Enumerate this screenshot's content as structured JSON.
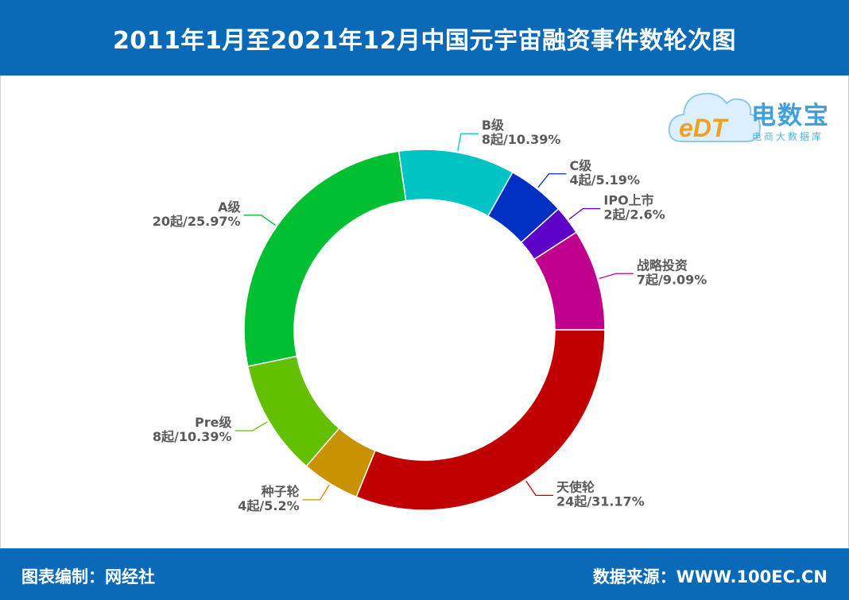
{
  "header": {
    "title": "2011年1月至2021年12月中国元宇宙融资事件数轮次图"
  },
  "footer": {
    "left": "图表编制：网经社",
    "right": "数据来源：WWW.100EC.CN"
  },
  "logo": {
    "brand": "电数宝",
    "sub": "电商大数据库",
    "mark": "eDT"
  },
  "chart_data": {
    "type": "pie",
    "style": "donut",
    "slices": [
      {
        "name": "天使轮",
        "count": 24,
        "pct": 31.17,
        "count_label": "24起/31.17%",
        "color": "#c00000"
      },
      {
        "name": "种子轮",
        "count": 4,
        "pct": 5.2,
        "count_label": "4起/5.2%",
        "color": "#c89200"
      },
      {
        "name": "Pre级",
        "count": 8,
        "pct": 10.39,
        "count_label": "8起/10.39%",
        "color": "#63c000"
      },
      {
        "name": "A级",
        "count": 20,
        "pct": 25.97,
        "count_label": "20起/25.97%",
        "color": "#00c032"
      },
      {
        "name": "B级",
        "count": 8,
        "pct": 10.39,
        "count_label": "8起/10.39%",
        "color": "#00c3c3"
      },
      {
        "name": "C级",
        "count": 4,
        "pct": 5.19,
        "count_label": "4起/5.19%",
        "color": "#0030c2"
      },
      {
        "name": "IPO上市",
        "count": 2,
        "pct": 2.6,
        "count_label": "2起/2.6%",
        "color": "#5c00c8"
      },
      {
        "name": "战略投资",
        "count": 7,
        "pct": 9.09,
        "count_label": "7起/9.09%",
        "color": "#c0008c"
      }
    ]
  }
}
